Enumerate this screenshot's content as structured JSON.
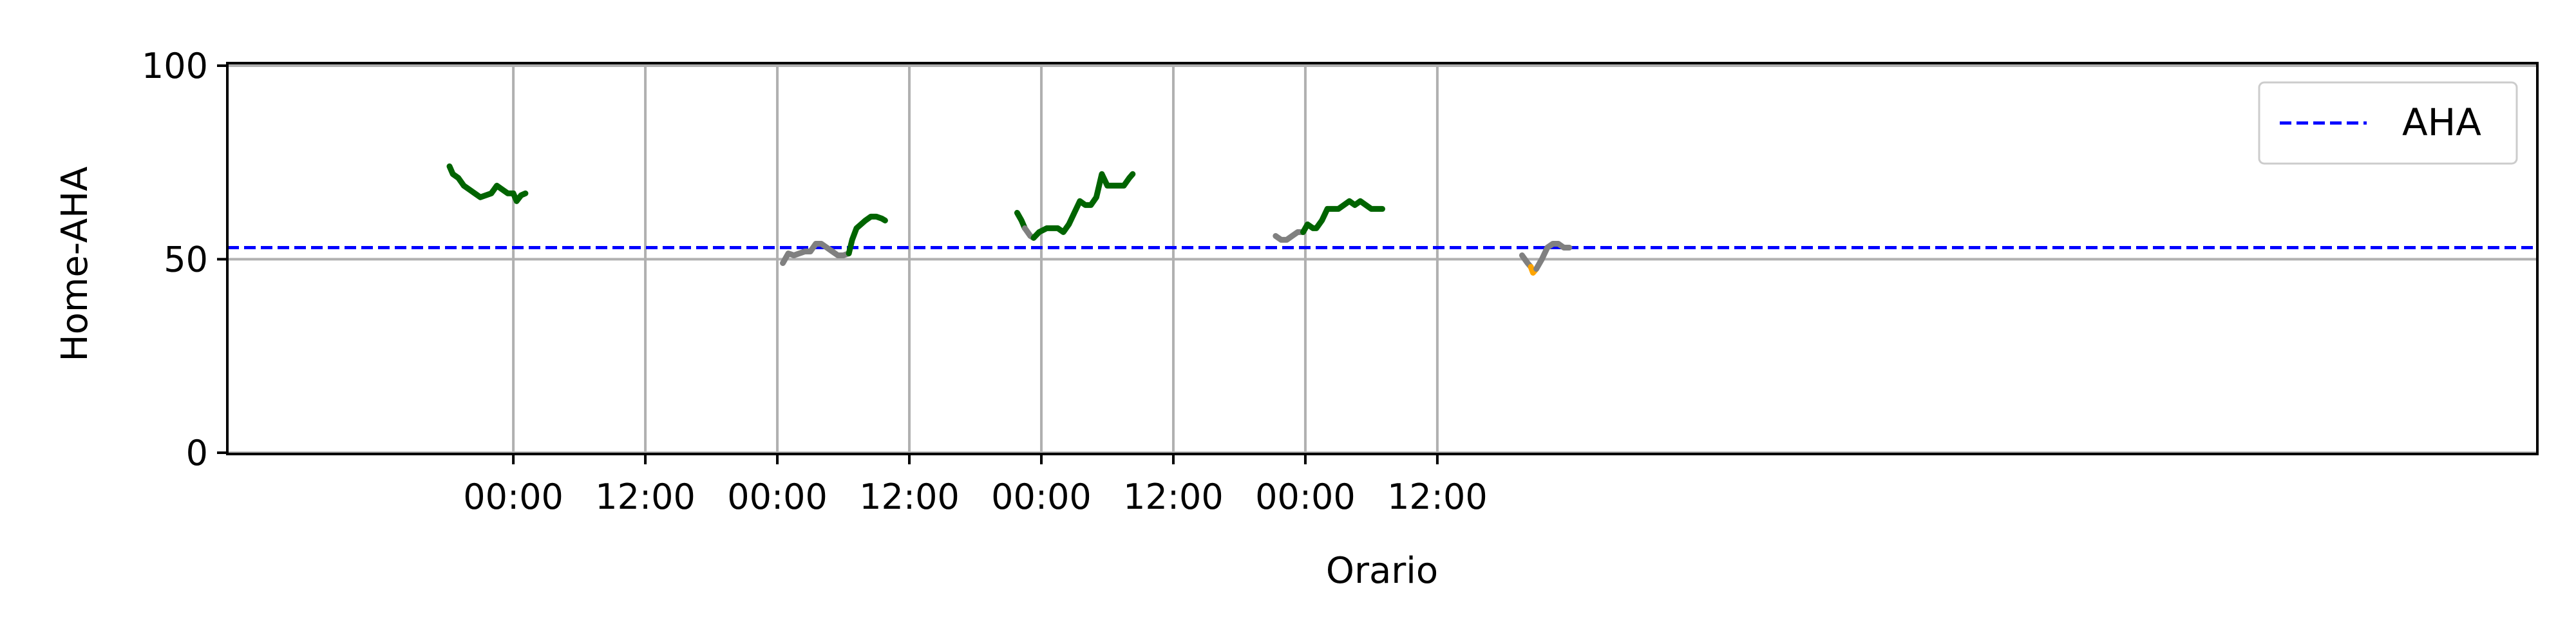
{
  "chart_data": {
    "type": "line",
    "title": "",
    "xlabel": "Orario",
    "ylabel": "Home-AHA",
    "ylim": [
      0,
      100
    ],
    "xlim_hours": [
      -26,
      184
    ],
    "grid": true,
    "legend_position": "top-right",
    "x_ticks": [
      {
        "hour": 0,
        "label": "00:00"
      },
      {
        "hour": 12,
        "label": "12:00"
      },
      {
        "hour": 24,
        "label": "00:00"
      },
      {
        "hour": 36,
        "label": "12:00"
      },
      {
        "hour": 48,
        "label": "00:00"
      },
      {
        "hour": 60,
        "label": "12:00"
      },
      {
        "hour": 72,
        "label": "00:00"
      },
      {
        "hour": 84,
        "label": "12:00"
      }
    ],
    "y_ticks": [
      {
        "value": 0,
        "label": "0"
      },
      {
        "value": 50,
        "label": "50"
      },
      {
        "value": 100,
        "label": "100"
      }
    ],
    "reference_line": {
      "name": "AHA",
      "value": 53,
      "color": "#0000ff",
      "style": "dashed"
    },
    "colors": {
      "green": "#006400",
      "grey": "#808080",
      "orange": "#ffa500"
    },
    "segments": [
      {
        "color": "green",
        "points": [
          [
            -5.8,
            74
          ],
          [
            -5.5,
            72
          ],
          [
            -5,
            71
          ],
          [
            -4.5,
            69
          ],
          [
            -4,
            68
          ],
          [
            -3.5,
            67
          ],
          [
            -3,
            66
          ],
          [
            -2.5,
            66.5
          ],
          [
            -2,
            67
          ],
          [
            -1.5,
            69
          ],
          [
            -1,
            68
          ],
          [
            -0.5,
            67
          ],
          [
            0,
            67
          ],
          [
            0.3,
            65
          ],
          [
            0.7,
            66.5
          ],
          [
            1.1,
            67
          ]
        ]
      },
      {
        "color": "grey",
        "points": [
          [
            24.5,
            49
          ],
          [
            25,
            51.5
          ],
          [
            25.5,
            51
          ],
          [
            26,
            51.5
          ],
          [
            26.5,
            52
          ],
          [
            27,
            52
          ],
          [
            27.5,
            54
          ],
          [
            28,
            54
          ],
          [
            28.5,
            53
          ],
          [
            29,
            52
          ],
          [
            29.5,
            51
          ],
          [
            30,
            51
          ],
          [
            30.5,
            51.5
          ]
        ]
      },
      {
        "color": "green",
        "points": [
          [
            30.5,
            51.5
          ],
          [
            30.8,
            55
          ],
          [
            31.2,
            58
          ],
          [
            31.6,
            59
          ],
          [
            32,
            60
          ],
          [
            32.5,
            61
          ],
          [
            33,
            61
          ],
          [
            33.5,
            60.5
          ],
          [
            33.8,
            60
          ]
        ]
      },
      {
        "color": "green",
        "points": [
          [
            45.8,
            62
          ],
          [
            46.2,
            60
          ],
          [
            46.5,
            58
          ]
        ]
      },
      {
        "color": "grey",
        "points": [
          [
            46.5,
            58
          ],
          [
            47,
            56
          ],
          [
            47.3,
            55.5
          ]
        ]
      },
      {
        "color": "green",
        "points": [
          [
            47.3,
            55.5
          ],
          [
            47.8,
            57
          ],
          [
            48.5,
            58
          ],
          [
            49,
            58
          ],
          [
            49.5,
            58
          ],
          [
            50,
            57
          ],
          [
            50.5,
            59
          ],
          [
            51,
            62
          ],
          [
            51.5,
            65
          ],
          [
            52,
            64
          ],
          [
            52.5,
            64
          ],
          [
            53,
            66
          ],
          [
            53.5,
            72
          ],
          [
            54,
            69
          ],
          [
            54.5,
            69
          ],
          [
            55,
            69
          ],
          [
            55.5,
            69
          ],
          [
            56,
            71
          ],
          [
            56.3,
            72
          ]
        ]
      },
      {
        "color": "grey",
        "points": [
          [
            69.3,
            56
          ],
          [
            69.8,
            55
          ],
          [
            70.3,
            55
          ],
          [
            70.8,
            56
          ],
          [
            71.3,
            57
          ],
          [
            71.8,
            57
          ]
        ]
      },
      {
        "color": "green",
        "points": [
          [
            71.8,
            57
          ],
          [
            72.2,
            59
          ],
          [
            72.7,
            58
          ],
          [
            73,
            58
          ],
          [
            73.5,
            60
          ],
          [
            74,
            63
          ],
          [
            74.5,
            63
          ],
          [
            75,
            63
          ],
          [
            75.5,
            64
          ],
          [
            76,
            65
          ],
          [
            76.5,
            64
          ],
          [
            77,
            65
          ],
          [
            77.5,
            64
          ],
          [
            78,
            63
          ],
          [
            78.5,
            63
          ],
          [
            79,
            63
          ]
        ]
      },
      {
        "color": "grey",
        "points": [
          [
            91.7,
            51
          ],
          [
            92.2,
            49
          ],
          [
            92.5,
            48
          ]
        ]
      },
      {
        "color": "orange",
        "points": [
          [
            92.5,
            48
          ],
          [
            92.7,
            46.5
          ],
          [
            93,
            47.5
          ]
        ]
      },
      {
        "color": "grey",
        "points": [
          [
            93,
            47.5
          ],
          [
            93.5,
            50
          ],
          [
            94,
            53
          ],
          [
            94.5,
            54
          ],
          [
            95,
            54
          ],
          [
            95.5,
            53
          ],
          [
            96,
            53
          ]
        ]
      }
    ]
  }
}
